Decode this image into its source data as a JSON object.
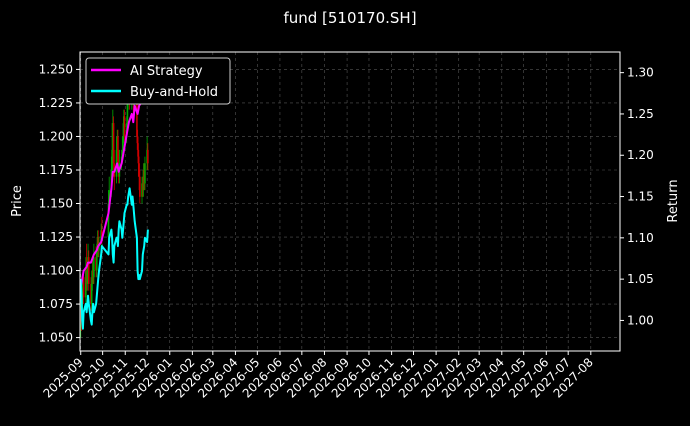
{
  "chart_data": {
    "type": "line",
    "title": "fund [510170.SH]",
    "ylabel_left": "Price",
    "ylabel_right": "Return",
    "xlabel": "",
    "grid": true,
    "legend_position": "top-left",
    "colors": {
      "background": "#000000",
      "axes": "#ffffff",
      "grid": "#555555",
      "ai_strategy": "#ff00ff",
      "buy_and_hold": "#00ffff",
      "candle_up": "#00aa00",
      "candle_down": "#cc0000"
    },
    "x_axis": {
      "type": "date",
      "range": [
        "2025-08-31",
        "2027-09-10"
      ],
      "tick_labels": [
        "2025-09",
        "2025-10",
        "2025-11",
        "2025-12",
        "2026-01",
        "2026-02",
        "2026-03",
        "2026-04",
        "2026-05",
        "2026-06",
        "2026-07",
        "2026-08",
        "2026-09",
        "2026-10",
        "2026-11",
        "2026-12",
        "2027-01",
        "2027-02",
        "2027-03",
        "2027-04",
        "2027-05",
        "2027-06",
        "2027-07",
        "2027-08"
      ],
      "tick_dates": [
        "2025-09-01",
        "2025-10-01",
        "2025-11-01",
        "2025-12-01",
        "2026-01-01",
        "2026-02-01",
        "2026-03-01",
        "2026-04-01",
        "2026-05-01",
        "2026-06-01",
        "2026-07-01",
        "2026-08-01",
        "2026-09-01",
        "2026-10-01",
        "2026-11-01",
        "2026-12-01",
        "2027-01-01",
        "2027-02-01",
        "2027-03-01",
        "2027-04-01",
        "2027-05-01",
        "2027-06-01",
        "2027-07-01",
        "2027-08-01"
      ]
    },
    "y_left": {
      "range": [
        1.04,
        1.263
      ],
      "ticks": [
        "1.050",
        "1.075",
        "1.100",
        "1.125",
        "1.150",
        "1.175",
        "1.200",
        "1.225",
        "1.250"
      ],
      "tick_values": [
        1.05,
        1.075,
        1.1,
        1.125,
        1.15,
        1.175,
        1.2,
        1.225,
        1.25
      ]
    },
    "y_right": {
      "range": [
        0.963,
        1.325
      ],
      "ticks": [
        "1.00",
        "1.05",
        "1.10",
        "1.15",
        "1.20",
        "1.25",
        "1.30"
      ],
      "tick_values": [
        1.0,
        1.05,
        1.1,
        1.15,
        1.2,
        1.25,
        1.3
      ]
    },
    "candles": [
      [
        "2025-09-01",
        1.055,
        1.072,
        1.05,
        1.078
      ],
      [
        "2025-09-02",
        1.072,
        1.06,
        1.055,
        1.08
      ],
      [
        "2025-09-03",
        1.06,
        1.085,
        1.058,
        1.09
      ],
      [
        "2025-09-04",
        1.085,
        1.095,
        1.08,
        1.1
      ],
      [
        "2025-09-05",
        1.095,
        1.08,
        1.075,
        1.1
      ],
      [
        "2025-09-08",
        1.08,
        1.1,
        1.075,
        1.11
      ],
      [
        "2025-09-09",
        1.1,
        1.09,
        1.085,
        1.12
      ],
      [
        "2025-09-10",
        1.09,
        1.1,
        1.085,
        1.105
      ],
      [
        "2025-09-11",
        1.1,
        1.11,
        1.095,
        1.12
      ],
      [
        "2025-09-12",
        1.11,
        1.09,
        1.085,
        1.115
      ],
      [
        "2025-09-15",
        1.09,
        1.075,
        1.07,
        1.095
      ],
      [
        "2025-09-16",
        1.075,
        1.09,
        1.07,
        1.1
      ],
      [
        "2025-09-17",
        1.09,
        1.1,
        1.085,
        1.108
      ],
      [
        "2025-09-18",
        1.1,
        1.095,
        1.09,
        1.11
      ],
      [
        "2025-09-19",
        1.095,
        1.11,
        1.09,
        1.12
      ],
      [
        "2025-09-22",
        1.11,
        1.1,
        1.095,
        1.118
      ],
      [
        "2025-09-23",
        1.1,
        1.115,
        1.095,
        1.12
      ],
      [
        "2025-09-24",
        1.115,
        1.125,
        1.11,
        1.13
      ],
      [
        "2025-09-25",
        1.125,
        1.115,
        1.11,
        1.13
      ],
      [
        "2025-09-26",
        1.115,
        1.12,
        1.11,
        1.125
      ],
      [
        "2025-09-29",
        1.12,
        1.13,
        1.115,
        1.135
      ],
      [
        "2025-09-30",
        1.13,
        1.125,
        1.12,
        1.14
      ],
      [
        "2025-10-09",
        1.125,
        1.15,
        1.12,
        1.16
      ],
      [
        "2025-10-10",
        1.15,
        1.16,
        1.145,
        1.17
      ],
      [
        "2025-10-13",
        1.16,
        1.175,
        1.155,
        1.185
      ],
      [
        "2025-10-14",
        1.175,
        1.19,
        1.165,
        1.21
      ],
      [
        "2025-10-15",
        1.19,
        1.21,
        1.18,
        1.22
      ],
      [
        "2025-10-16",
        1.21,
        1.18,
        1.175,
        1.215
      ],
      [
        "2025-10-17",
        1.18,
        1.17,
        1.16,
        1.19
      ],
      [
        "2025-10-20",
        1.17,
        1.19,
        1.165,
        1.2
      ],
      [
        "2025-10-21",
        1.19,
        1.2,
        1.18,
        1.205
      ],
      [
        "2025-10-22",
        1.2,
        1.18,
        1.175,
        1.205
      ],
      [
        "2025-10-23",
        1.18,
        1.17,
        1.165,
        1.19
      ],
      [
        "2025-10-24",
        1.17,
        1.18,
        1.165,
        1.19
      ],
      [
        "2025-10-27",
        1.18,
        1.185,
        1.175,
        1.19
      ],
      [
        "2025-10-28",
        1.185,
        1.19,
        1.18,
        1.2
      ],
      [
        "2025-10-29",
        1.19,
        1.2,
        1.185,
        1.21
      ],
      [
        "2025-10-30",
        1.2,
        1.215,
        1.195,
        1.22
      ],
      [
        "2025-10-31",
        1.215,
        1.2,
        1.195,
        1.22
      ],
      [
        "2025-11-03",
        1.2,
        1.21,
        1.195,
        1.215
      ],
      [
        "2025-11-04",
        1.21,
        1.225,
        1.205,
        1.23
      ],
      [
        "2025-11-05",
        1.225,
        1.23,
        1.22,
        1.24
      ],
      [
        "2025-11-06",
        1.23,
        1.235,
        1.225,
        1.245
      ],
      [
        "2025-11-07",
        1.235,
        1.225,
        1.22,
        1.24
      ],
      [
        "2025-11-10",
        1.225,
        1.23,
        1.22,
        1.235
      ],
      [
        "2025-11-11",
        1.23,
        1.235,
        1.225,
        1.24
      ],
      [
        "2025-11-12",
        1.235,
        1.225,
        1.215,
        1.24
      ],
      [
        "2025-11-13",
        1.225,
        1.245,
        1.22,
        1.25
      ],
      [
        "2025-11-14",
        1.245,
        1.23,
        1.225,
        1.25
      ],
      [
        "2025-11-17",
        1.23,
        1.2,
        1.195,
        1.235
      ],
      [
        "2025-11-18",
        1.2,
        1.19,
        1.185,
        1.205
      ],
      [
        "2025-11-19",
        1.19,
        1.18,
        1.17,
        1.195
      ],
      [
        "2025-11-20",
        1.18,
        1.17,
        1.16,
        1.185
      ],
      [
        "2025-11-21",
        1.17,
        1.155,
        1.15,
        1.175
      ],
      [
        "2025-11-24",
        1.155,
        1.165,
        1.15,
        1.17
      ],
      [
        "2025-11-25",
        1.165,
        1.16,
        1.155,
        1.17
      ],
      [
        "2025-11-26",
        1.16,
        1.175,
        1.155,
        1.18
      ],
      [
        "2025-11-27",
        1.175,
        1.165,
        1.16,
        1.18
      ],
      [
        "2025-11-28",
        1.165,
        1.18,
        1.16,
        1.185
      ],
      [
        "2025-12-01",
        1.18,
        1.19,
        1.175,
        1.2
      ],
      [
        "2025-12-02",
        1.19,
        1.18,
        1.175,
        1.195
      ]
    ],
    "series": [
      {
        "name": "AI Strategy",
        "axis": "right",
        "x": [
          "2025-09-01",
          "2025-09-03",
          "2025-09-05",
          "2025-09-09",
          "2025-09-11",
          "2025-09-15",
          "2025-09-17",
          "2025-09-19",
          "2025-09-23",
          "2025-09-25",
          "2025-09-29",
          "2025-10-09",
          "2025-10-13",
          "2025-10-15",
          "2025-10-17",
          "2025-10-21",
          "2025-10-23",
          "2025-10-27",
          "2025-10-29",
          "2025-10-31",
          "2025-11-04",
          "2025-11-06",
          "2025-11-10",
          "2025-11-12",
          "2025-11-14",
          "2025-11-18",
          "2025-11-20",
          "2025-11-24",
          "2025-11-26",
          "2025-11-28",
          "2025-12-02"
        ],
        "values": [
          1.04,
          1.05,
          1.06,
          1.065,
          1.07,
          1.07,
          1.075,
          1.08,
          1.085,
          1.09,
          1.095,
          1.13,
          1.16,
          1.18,
          1.18,
          1.19,
          1.18,
          1.19,
          1.2,
          1.21,
          1.23,
          1.24,
          1.25,
          1.24,
          1.26,
          1.25,
          1.26,
          1.265,
          1.27,
          1.28,
          1.28
        ]
      },
      {
        "name": "Buy-and-Hold",
        "axis": "right",
        "x": [
          "2025-09-01",
          "2025-09-02",
          "2025-09-03",
          "2025-09-04",
          "2025-09-05",
          "2025-09-08",
          "2025-09-09",
          "2025-09-10",
          "2025-09-11",
          "2025-09-12",
          "2025-09-15",
          "2025-09-16",
          "2025-09-17",
          "2025-09-18",
          "2025-09-19",
          "2025-09-22",
          "2025-09-23",
          "2025-09-24",
          "2025-09-25",
          "2025-09-26",
          "2025-09-29",
          "2025-09-30",
          "2025-10-09",
          "2025-10-10",
          "2025-10-13",
          "2025-10-14",
          "2025-10-15",
          "2025-10-16",
          "2025-10-17",
          "2025-10-20",
          "2025-10-21",
          "2025-10-22",
          "2025-10-23",
          "2025-10-24",
          "2025-10-27",
          "2025-10-28",
          "2025-10-29",
          "2025-10-30",
          "2025-10-31",
          "2025-11-03",
          "2025-11-04",
          "2025-11-05",
          "2025-11-06",
          "2025-11-07",
          "2025-11-10",
          "2025-11-11",
          "2025-11-12",
          "2025-11-13",
          "2025-11-14",
          "2025-11-17",
          "2025-11-18",
          "2025-11-19",
          "2025-11-20",
          "2025-11-21",
          "2025-11-24",
          "2025-11-25",
          "2025-11-26",
          "2025-11-27",
          "2025-11-28",
          "2025-12-01",
          "2025-12-02"
        ],
        "values": [
          1.05,
          1.03,
          1.0,
          0.99,
          1.01,
          1.02,
          1.01,
          1.02,
          1.03,
          1.02,
          1.0,
          0.995,
          1.01,
          1.02,
          1.01,
          1.02,
          1.03,
          1.04,
          1.05,
          1.06,
          1.08,
          1.09,
          1.08,
          1.1,
          1.11,
          1.1,
          1.08,
          1.07,
          1.09,
          1.1,
          1.1,
          1.09,
          1.11,
          1.12,
          1.11,
          1.1,
          1.11,
          1.12,
          1.13,
          1.14,
          1.14,
          1.15,
          1.155,
          1.16,
          1.14,
          1.15,
          1.14,
          1.13,
          1.12,
          1.1,
          1.06,
          1.05,
          1.055,
          1.05,
          1.06,
          1.08,
          1.085,
          1.09,
          1.1,
          1.095,
          1.11
        ]
      }
    ]
  }
}
